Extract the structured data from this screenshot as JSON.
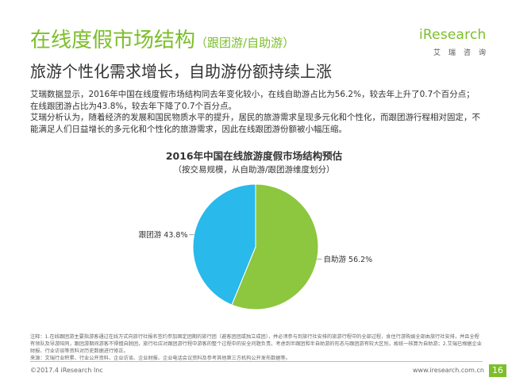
{
  "header": {
    "title": "在线度假市场结构",
    "title_suffix": "（跟团游/自助游）",
    "subtitle": "旅游个性化需求增长，自助游份额持续上涨"
  },
  "logo": {
    "wordmark": "iResearch",
    "cn": "艾瑞咨询"
  },
  "description": [
    "艾瑞数据显示，2016年中国在线度假市场结构同去年变化较小，在线自助游占比为56.2%，较去年上升了0.7个百分点；在线跟团游占比为43.8%，较去年下降了0.7个百分点。",
    "艾瑞分析认为，随着经济的发展和国民物质水平的提升，居民的旅游需求呈现多元化和个性化，而跟团游行程相对固定，不能满足人们日益增长的多元化和个性化的旅游需求，因此在线跟团游份额被小幅压缩。"
  ],
  "chart_data": {
    "type": "pie",
    "title": "2016年中国在线旅游度假市场结构预估",
    "subtitle": "（按交易规模，从自助游/跟团游维度划分）",
    "slices": [
      {
        "label": "自助游",
        "value": 56.2,
        "display": "自助游 56.2%",
        "color": "#8dc63f"
      },
      {
        "label": "跟团游",
        "value": 43.8,
        "display": "跟团游 43.8%",
        "color": "#29b9ea"
      }
    ]
  },
  "notes": [
    "注释：1.在线跟团游主要指游客通过在线方式向旅行社报名签约参加固定团期的旅行团（避客团团或独立成团），并必须参与到旅行社安排的旅游行程中的全部过程，食住行游购娱全部由旅行社安排，并且全程有领队及导游陪同，跟团游期间游客不得擅自脱团，旅行社应对跟团游行程中游客的整个过程中的安全问题负责。考虑到半跟团和半自助游的形态与跟团游有较大区别，故统一核算为自助游；2.艾瑞已根据企业财报、行业访谈等资料对历史数据进行修正。",
    "来源：文瑞行业积累、行业公开资料、企业访谈、企业财报、企业电话会议资料及参考其他第三方机构公开发布数据等。"
  ],
  "footer": {
    "copyright": "©2017.4 iResearch Inc",
    "url": "www.iresearch.com.cn",
    "page": "16"
  }
}
